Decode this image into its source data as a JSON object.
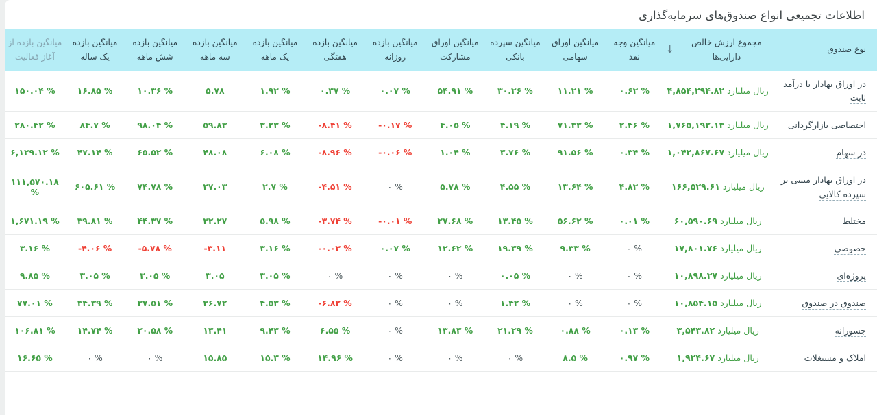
{
  "title": "اطلاعات تجمیعی انواع صندوق‌های سرمایه‌گذاری",
  "colors": {
    "header_background": "#b5edf6",
    "positive_value": "#43a047",
    "negative_value": "#ef4136",
    "zero_value": "#4f5b5e",
    "fund_link": "#37474f"
  },
  "table": {
    "sort_icon": "↓",
    "nav_unit": "میلیارد ریال",
    "columns": [
      {
        "key": "fund",
        "label": "نوع صندوق"
      },
      {
        "key": "nav",
        "label": "مجموع ارزش خالص دارایی‌ها",
        "sorted": "desc"
      },
      {
        "key": "cash",
        "label": "میانگین وجه نقد"
      },
      {
        "key": "equity",
        "label": "میانگین اوراق سهامی"
      },
      {
        "key": "deposit",
        "label": "میانگین سپرده بانکی"
      },
      {
        "key": "bonds",
        "label": "میانگین اوراق مشارکت"
      },
      {
        "key": "daily",
        "label": "میانگین بازده روزانه"
      },
      {
        "key": "weekly",
        "label": "میانگین بازده هفتگی"
      },
      {
        "key": "m1",
        "label": "میانگین بازده یک ماهه"
      },
      {
        "key": "m3",
        "label": "میانگین بازده سه ماهه"
      },
      {
        "key": "m6",
        "label": "میانگین بازده شش ماهه"
      },
      {
        "key": "y1",
        "label": "میانگین بازده یک ساله"
      },
      {
        "key": "inception",
        "label": "میانگین بازده از آغاز فعالیت",
        "muted": true
      }
    ],
    "rows": [
      {
        "fund": "در اوراق بهادار با درآمد ثابت",
        "nav": "۴,۸۵۴,۲۹۴.۸۲",
        "values": [
          {
            "t": "۰.۶۲ %",
            "c": "g"
          },
          {
            "t": "۱۱.۲۱ %",
            "c": "g"
          },
          {
            "t": "۳۰.۲۶ %",
            "c": "g"
          },
          {
            "t": "۵۴.۹۱ %",
            "c": "g"
          },
          {
            "t": "۰.۰۷ %",
            "c": "g"
          },
          {
            "t": "۰.۳۷ %",
            "c": "g"
          },
          {
            "t": "۱.۹۲ %",
            "c": "g"
          },
          {
            "t": "۵.۷۸",
            "c": "g"
          },
          {
            "t": "۱۰.۳۶ %",
            "c": "g"
          },
          {
            "t": "۱۶.۸۵ %",
            "c": "g"
          },
          {
            "t": "۱۵۰.۰۴ %",
            "c": "g"
          }
        ]
      },
      {
        "fund": "اختصاصی بازارگردانی",
        "nav": "۱,۷۶۵,۱۹۲.۱۳",
        "values": [
          {
            "t": "۲.۴۶ %",
            "c": "g"
          },
          {
            "t": "۷۱.۳۳ %",
            "c": "g"
          },
          {
            "t": "۴.۱۹ %",
            "c": "g"
          },
          {
            "t": "۴.۰۵ %",
            "c": "g"
          },
          {
            "t": "-۰.۱۷ %",
            "c": "r"
          },
          {
            "t": "-۸.۴۱ %",
            "c": "r"
          },
          {
            "t": "۳.۲۳ %",
            "c": "g"
          },
          {
            "t": "۵۹.۸۳",
            "c": "g"
          },
          {
            "t": "۹۸.۰۴ %",
            "c": "g"
          },
          {
            "t": "۸۴.۷ %",
            "c": "g"
          },
          {
            "t": "۲۸۰.۴۲ %",
            "c": "g"
          }
        ]
      },
      {
        "fund": "در سهام",
        "nav": "۱,۰۴۲,۸۶۷.۶۷",
        "values": [
          {
            "t": "۰.۳۴ %",
            "c": "g"
          },
          {
            "t": "۹۱.۵۶ %",
            "c": "g"
          },
          {
            "t": "۳.۷۶ %",
            "c": "g"
          },
          {
            "t": "۱.۰۴ %",
            "c": "g"
          },
          {
            "t": "-۰.۰۶ %",
            "c": "r"
          },
          {
            "t": "-۸.۹۶ %",
            "c": "r"
          },
          {
            "t": "۶.۰۸ %",
            "c": "g"
          },
          {
            "t": "۴۸.۰۸",
            "c": "g"
          },
          {
            "t": "۶۵.۵۲ %",
            "c": "g"
          },
          {
            "t": "۴۷.۱۴ %",
            "c": "g"
          },
          {
            "t": "۶,۱۲۹.۱۲ %",
            "c": "g"
          }
        ]
      },
      {
        "fund": "در اوراق بهادار مبتنی بر سپرده کالایی",
        "nav": "۱۶۶,۵۲۹.۶۱",
        "values": [
          {
            "t": "۴.۸۲ %",
            "c": "g"
          },
          {
            "t": "۱۳.۶۴ %",
            "c": "g"
          },
          {
            "t": "۴.۵۵ %",
            "c": "g"
          },
          {
            "t": "۵.۷۸ %",
            "c": "g"
          },
          {
            "t": "۰ %",
            "c": "k"
          },
          {
            "t": "-۴.۵۱ %",
            "c": "r"
          },
          {
            "t": "۲.۷ %",
            "c": "g"
          },
          {
            "t": "۲۷.۰۳",
            "c": "g"
          },
          {
            "t": "۷۴.۷۸ %",
            "c": "g"
          },
          {
            "t": "۶۰۵.۶۱ %",
            "c": "g"
          },
          {
            "t": "۱۱۱,۵۷۰.۱۸ %",
            "c": "g"
          }
        ]
      },
      {
        "fund": "مختلط",
        "nav": "۶۰,۵۹۰.۶۹",
        "values": [
          {
            "t": "۰.۰۱ %",
            "c": "g"
          },
          {
            "t": "۵۶.۶۲ %",
            "c": "g"
          },
          {
            "t": "۱۳.۴۵ %",
            "c": "g"
          },
          {
            "t": "۲۷.۶۸ %",
            "c": "g"
          },
          {
            "t": "-۰.۰۱ %",
            "c": "r"
          },
          {
            "t": "-۳.۷۴ %",
            "c": "r"
          },
          {
            "t": "۵.۹۸ %",
            "c": "g"
          },
          {
            "t": "۳۲.۲۷",
            "c": "g"
          },
          {
            "t": "۴۴.۳۷ %",
            "c": "g"
          },
          {
            "t": "۳۹.۸۱ %",
            "c": "g"
          },
          {
            "t": "۱,۶۷۱.۱۹ %",
            "c": "g"
          }
        ]
      },
      {
        "fund": "خصوصی",
        "nav": "۱۷,۸۰۱.۷۶",
        "values": [
          {
            "t": "۰ %",
            "c": "k"
          },
          {
            "t": "۹.۳۳ %",
            "c": "g"
          },
          {
            "t": "۱۹.۳۹ %",
            "c": "g"
          },
          {
            "t": "۱۲.۶۲ %",
            "c": "g"
          },
          {
            "t": "۰.۰۷ %",
            "c": "g"
          },
          {
            "t": "-۰.۰۳ %",
            "c": "r"
          },
          {
            "t": "۳.۱۶ %",
            "c": "g"
          },
          {
            "t": "-۳.۱۱",
            "c": "r"
          },
          {
            "t": "-۵.۷۸ %",
            "c": "r"
          },
          {
            "t": "-۴.۰۶ %",
            "c": "r"
          },
          {
            "t": "۳.۱۶ %",
            "c": "g"
          }
        ]
      },
      {
        "fund": "پروژه‌ای",
        "nav": "۱۰,۸۹۸.۲۷",
        "values": [
          {
            "t": "۰ %",
            "c": "k"
          },
          {
            "t": "۰ %",
            "c": "k"
          },
          {
            "t": "۰.۰۵ %",
            "c": "g"
          },
          {
            "t": "۰ %",
            "c": "k"
          },
          {
            "t": "۰ %",
            "c": "k"
          },
          {
            "t": "۰ %",
            "c": "k"
          },
          {
            "t": "۳.۰۵ %",
            "c": "g"
          },
          {
            "t": "۳.۰۵",
            "c": "g"
          },
          {
            "t": "۳.۰۵ %",
            "c": "g"
          },
          {
            "t": "۳.۰۵ %",
            "c": "g"
          },
          {
            "t": "۹.۸۵ %",
            "c": "g"
          }
        ]
      },
      {
        "fund": "صندوق در صندوق",
        "nav": "۱۰,۸۵۴.۱۵",
        "values": [
          {
            "t": "۰ %",
            "c": "k"
          },
          {
            "t": "۰ %",
            "c": "k"
          },
          {
            "t": "۱.۴۲ %",
            "c": "g"
          },
          {
            "t": "۰ %",
            "c": "k"
          },
          {
            "t": "۰ %",
            "c": "k"
          },
          {
            "t": "-۶.۸۲ %",
            "c": "r"
          },
          {
            "t": "۴.۵۳ %",
            "c": "g"
          },
          {
            "t": "۳۶.۷۲",
            "c": "g"
          },
          {
            "t": "۳۷.۵۱ %",
            "c": "g"
          },
          {
            "t": "۳۴.۳۹ %",
            "c": "g"
          },
          {
            "t": "۷۷.۰۱ %",
            "c": "g"
          }
        ]
      },
      {
        "fund": "جسورانه",
        "nav": "۳,۵۴۳.۸۲",
        "values": [
          {
            "t": "۰.۱۳ %",
            "c": "g"
          },
          {
            "t": "۰.۸۸ %",
            "c": "g"
          },
          {
            "t": "۲۱.۲۹ %",
            "c": "g"
          },
          {
            "t": "۱۳.۸۳ %",
            "c": "g"
          },
          {
            "t": "۰ %",
            "c": "k"
          },
          {
            "t": "۶.۵۵ %",
            "c": "g"
          },
          {
            "t": "۹.۴۳ %",
            "c": "g"
          },
          {
            "t": "۱۳.۴۱",
            "c": "g"
          },
          {
            "t": "۲۰.۵۸ %",
            "c": "g"
          },
          {
            "t": "۱۴.۷۴ %",
            "c": "g"
          },
          {
            "t": "۱۰۶.۸۱ %",
            "c": "g"
          }
        ]
      },
      {
        "fund": "املاک و مستغلات",
        "nav": "۱,۹۲۴.۶۷",
        "values": [
          {
            "t": "۰.۹۷ %",
            "c": "g"
          },
          {
            "t": "۸.۵ %",
            "c": "g"
          },
          {
            "t": "۰ %",
            "c": "k"
          },
          {
            "t": "۰ %",
            "c": "k"
          },
          {
            "t": "۰ %",
            "c": "k"
          },
          {
            "t": "۱۴.۹۶ %",
            "c": "g"
          },
          {
            "t": "۱۵.۳ %",
            "c": "g"
          },
          {
            "t": "۱۵.۸۵",
            "c": "g"
          },
          {
            "t": "۰ %",
            "c": "k"
          },
          {
            "t": "۰ %",
            "c": "k"
          },
          {
            "t": "۱۶.۶۵ %",
            "c": "g"
          }
        ]
      }
    ]
  }
}
